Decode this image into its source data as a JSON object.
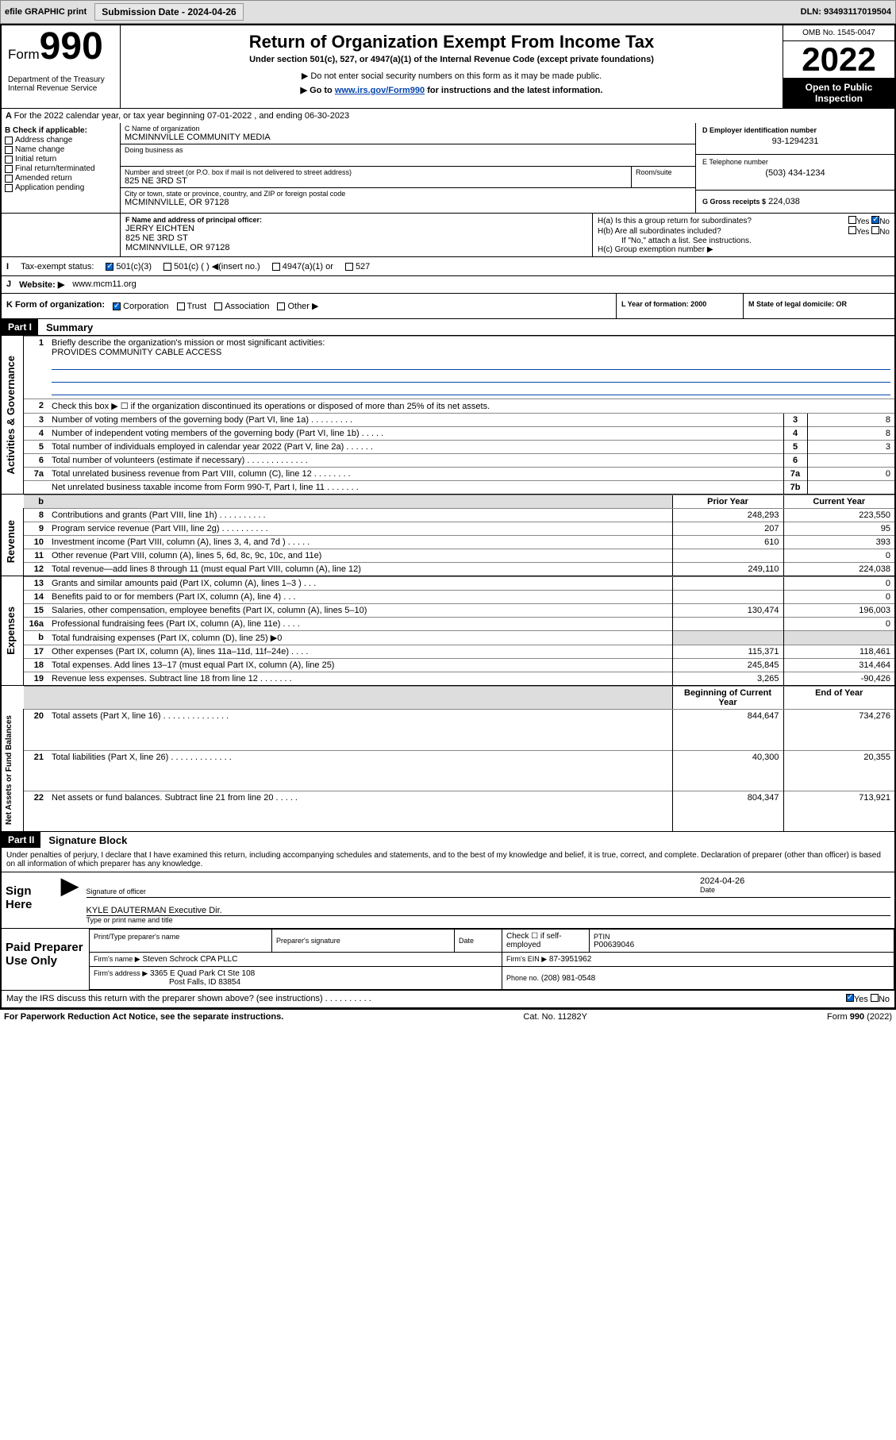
{
  "topbar": {
    "efile": "efile GRAPHIC print",
    "submission_label": "Submission Date - 2024-04-26",
    "dln_label": "DLN: 93493117019504"
  },
  "header": {
    "form_prefix": "Form",
    "form_number": "990",
    "dept": "Department of the Treasury",
    "irs": "Internal Revenue Service",
    "main_title": "Return of Organization Exempt From Income Tax",
    "subtitle": "Under section 501(c), 527, or 4947(a)(1) of the Internal Revenue Code (except private foundations)",
    "note1": "▶ Do not enter social security numbers on this form as it may be made public.",
    "note2_prefix": "▶ Go to ",
    "note2_link": "www.irs.gov/Form990",
    "note2_suffix": " for instructions and the latest information.",
    "omb": "OMB No. 1545-0047",
    "year": "2022",
    "open": "Open to Public Inspection"
  },
  "sectionA": {
    "line": "For the 2022 calendar year, or tax year beginning 07-01-2022  , and ending 06-30-2023",
    "b_label": "B Check if applicable:",
    "checks": [
      "Address change",
      "Name change",
      "Initial return",
      "Final return/terminated",
      "Amended return",
      "Application pending"
    ],
    "c_name_label": "C Name of organization",
    "org_name": "MCMINNVILLE COMMUNITY MEDIA",
    "dba_label": "Doing business as",
    "addr_label": "Number and street (or P.O. box if mail is not delivered to street address)",
    "room_label": "Room/suite",
    "addr": "825 NE 3RD ST",
    "city_label": "City or town, state or province, country, and ZIP or foreign postal code",
    "city": "MCMINNVILLE, OR  97128",
    "d_label": "D Employer identification number",
    "ein": "93-1294231",
    "e_label": "E Telephone number",
    "phone": "(503) 434-1234",
    "g_label": "G Gross receipts $",
    "gross": "224,038",
    "f_label": "F Name and address of principal officer:",
    "officer_name": "JERRY EICHTEN",
    "officer_addr": "825 NE 3RD ST",
    "officer_city": "MCMINNVILLE, OR  97128",
    "h_a": "H(a)  Is this a group return for subordinates?",
    "h_b": "H(b)  Are all subordinates included?",
    "h_note": "If \"No,\" attach a list. See instructions.",
    "h_c": "H(c)  Group exemption number ▶",
    "i_label": "Tax-exempt status:",
    "i_501c3": "501(c)(3)",
    "i_501c": "501(c) ( ) ◀(insert no.)",
    "i_4947": "4947(a)(1) or",
    "i_527": "527",
    "j_label": "Website: ▶",
    "website": "www.mcm11.org",
    "k_label": "K Form of organization:",
    "k_opts": [
      "Corporation",
      "Trust",
      "Association",
      "Other ▶"
    ],
    "l_label": "L Year of formation: 2000",
    "m_label": "M State of legal domicile: OR"
  },
  "part1": {
    "header": "Part I",
    "title": "Summary",
    "q1": "Briefly describe the organization's mission or most significant activities:",
    "mission": "PROVIDES COMMUNITY CABLE ACCESS",
    "q2": "Check this box ▶ ☐  if the organization discontinued its operations or disposed of more than 25% of its net assets.",
    "q3": "Number of voting members of the governing body (Part VI, line 1a)  .  .  .  .  .  .  .  .  .",
    "q4": "Number of independent voting members of the governing body (Part VI, line 1b)  .  .  .  .  .",
    "q5": "Total number of individuals employed in calendar year 2022 (Part V, line 2a)  .  .  .  .  .  .",
    "q6": "Total number of volunteers (estimate if necessary)  .  .  .  .  .  .  .  .  .  .  .  .  .",
    "q7a": "Total unrelated business revenue from Part VIII, column (C), line 12  .  .  .  .  .  .  .  .",
    "q7b": "Net unrelated business taxable income from Form 990-T, Part I, line 11  .  .  .  .  .  .  .",
    "v3": "8",
    "v4": "8",
    "v5": "3",
    "v6": "",
    "v7a": "0",
    "v7b": "",
    "prior_head": "Prior Year",
    "current_head": "Current Year",
    "rows": [
      {
        "n": "8",
        "t": "Contributions and grants (Part VIII, line 1h)  .  .  .  .  .  .  .  .  .  .",
        "p": "248,293",
        "c": "223,550"
      },
      {
        "n": "9",
        "t": "Program service revenue (Part VIII, line 2g)  .  .  .  .  .  .  .  .  .  .",
        "p": "207",
        "c": "95"
      },
      {
        "n": "10",
        "t": "Investment income (Part VIII, column (A), lines 3, 4, and 7d )  .  .  .  .  .",
        "p": "610",
        "c": "393"
      },
      {
        "n": "11",
        "t": "Other revenue (Part VIII, column (A), lines 5, 6d, 8c, 9c, 10c, and 11e)",
        "p": "",
        "c": "0"
      },
      {
        "n": "12",
        "t": "Total revenue—add lines 8 through 11 (must equal Part VIII, column (A), line 12)",
        "p": "249,110",
        "c": "224,038"
      },
      {
        "n": "13",
        "t": "Grants and similar amounts paid (Part IX, column (A), lines 1–3 )  .  .  .",
        "p": "",
        "c": "0"
      },
      {
        "n": "14",
        "t": "Benefits paid to or for members (Part IX, column (A), line 4)  .  .  .",
        "p": "",
        "c": "0"
      },
      {
        "n": "15",
        "t": "Salaries, other compensation, employee benefits (Part IX, column (A), lines 5–10)",
        "p": "130,474",
        "c": "196,003"
      },
      {
        "n": "16a",
        "t": "Professional fundraising fees (Part IX, column (A), line 11e)  .  .  .  .",
        "p": "",
        "c": "0"
      },
      {
        "n": "b",
        "t": "Total fundraising expenses (Part IX, column (D), line 25) ▶0",
        "p": "grey",
        "c": "grey"
      },
      {
        "n": "17",
        "t": "Other expenses (Part IX, column (A), lines 11a–11d, 11f–24e)  .  .  .  .",
        "p": "115,371",
        "c": "118,461"
      },
      {
        "n": "18",
        "t": "Total expenses. Add lines 13–17 (must equal Part IX, column (A), line 25)",
        "p": "245,845",
        "c": "314,464"
      },
      {
        "n": "19",
        "t": "Revenue less expenses. Subtract line 18 from line 12  .  .  .  .  .  .  .",
        "p": "3,265",
        "c": "-90,426"
      }
    ],
    "beg_head": "Beginning of Current Year",
    "end_head": "End of Year",
    "net_rows": [
      {
        "n": "20",
        "t": "Total assets (Part X, line 16)  .  .  .  .  .  .  .  .  .  .  .  .  .  .",
        "p": "844,647",
        "c": "734,276"
      },
      {
        "n": "21",
        "t": "Total liabilities (Part X, line 26)  .  .  .  .  .  .  .  .  .  .  .  .  .",
        "p": "40,300",
        "c": "20,355"
      },
      {
        "n": "22",
        "t": "Net assets or fund balances. Subtract line 21 from line 20  .  .  .  .  .",
        "p": "804,347",
        "c": "713,921"
      }
    ],
    "side_labels": {
      "gov": "Activities & Governance",
      "rev": "Revenue",
      "exp": "Expenses",
      "net": "Net Assets or\nFund Balances"
    }
  },
  "part2": {
    "header": "Part II",
    "title": "Signature Block",
    "declaration": "Under penalties of perjury, I declare that I have examined this return, including accompanying schedules and statements, and to the best of my knowledge and belief, it is true, correct, and complete. Declaration of preparer (other than officer) is based on all information of which preparer has any knowledge.",
    "sign_here": "Sign Here",
    "sig_officer": "Signature of officer",
    "date_label": "Date",
    "date_val": "2024-04-26",
    "officer_name": "KYLE DAUTERMAN Executive Dir.",
    "type_name": "Type or print name and title",
    "paid": "Paid Preparer Use Only",
    "prep_name_label": "Print/Type preparer's name",
    "prep_sig_label": "Preparer's signature",
    "prep_date_label": "Date",
    "prep_check": "Check ☐ if self-employed",
    "ptin_label": "PTIN",
    "ptin": "P00639046",
    "firm_name_label": "Firm's name    ▶",
    "firm_name": "Steven Schrock CPA PLLC",
    "firm_ein_label": "Firm's EIN ▶",
    "firm_ein": "87-3951962",
    "firm_addr_label": "Firm's address ▶",
    "firm_addr": "3365 E Quad Park Ct Ste 108",
    "firm_city": "Post Falls, ID  83854",
    "firm_phone_label": "Phone no.",
    "firm_phone": "(208) 981-0548",
    "may_irs": "May the IRS discuss this return with the preparer shown above? (see instructions)  .  .  .  .  .  .  .  .  .  ."
  },
  "footer": {
    "left": "For Paperwork Reduction Act Notice, see the separate instructions.",
    "mid": "Cat. No. 11282Y",
    "right": "Form 990 (2022)"
  }
}
